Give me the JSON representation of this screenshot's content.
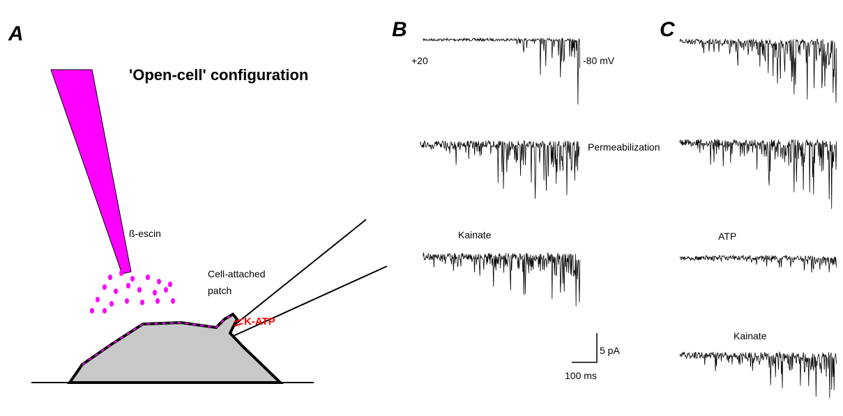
{
  "panels": {
    "a": "A",
    "b": "B",
    "c": "C"
  },
  "diagram": {
    "title": "'Open-cell' configuration",
    "pipette_label": "ß-escin",
    "patch_label": [
      "Cell-attached",
      "patch"
    ],
    "channel_label": "K-ATP"
  },
  "traces_b": {
    "voltage_start": "+20",
    "voltage_end": "-80 mV",
    "permeabilization": "Permeabilization",
    "kainate": "Kainate"
  },
  "traces_c": {
    "atp": "ATP",
    "kainate": "Kainate"
  },
  "scale_bar": {
    "current": "5 pA",
    "time": "100 ms"
  }
}
